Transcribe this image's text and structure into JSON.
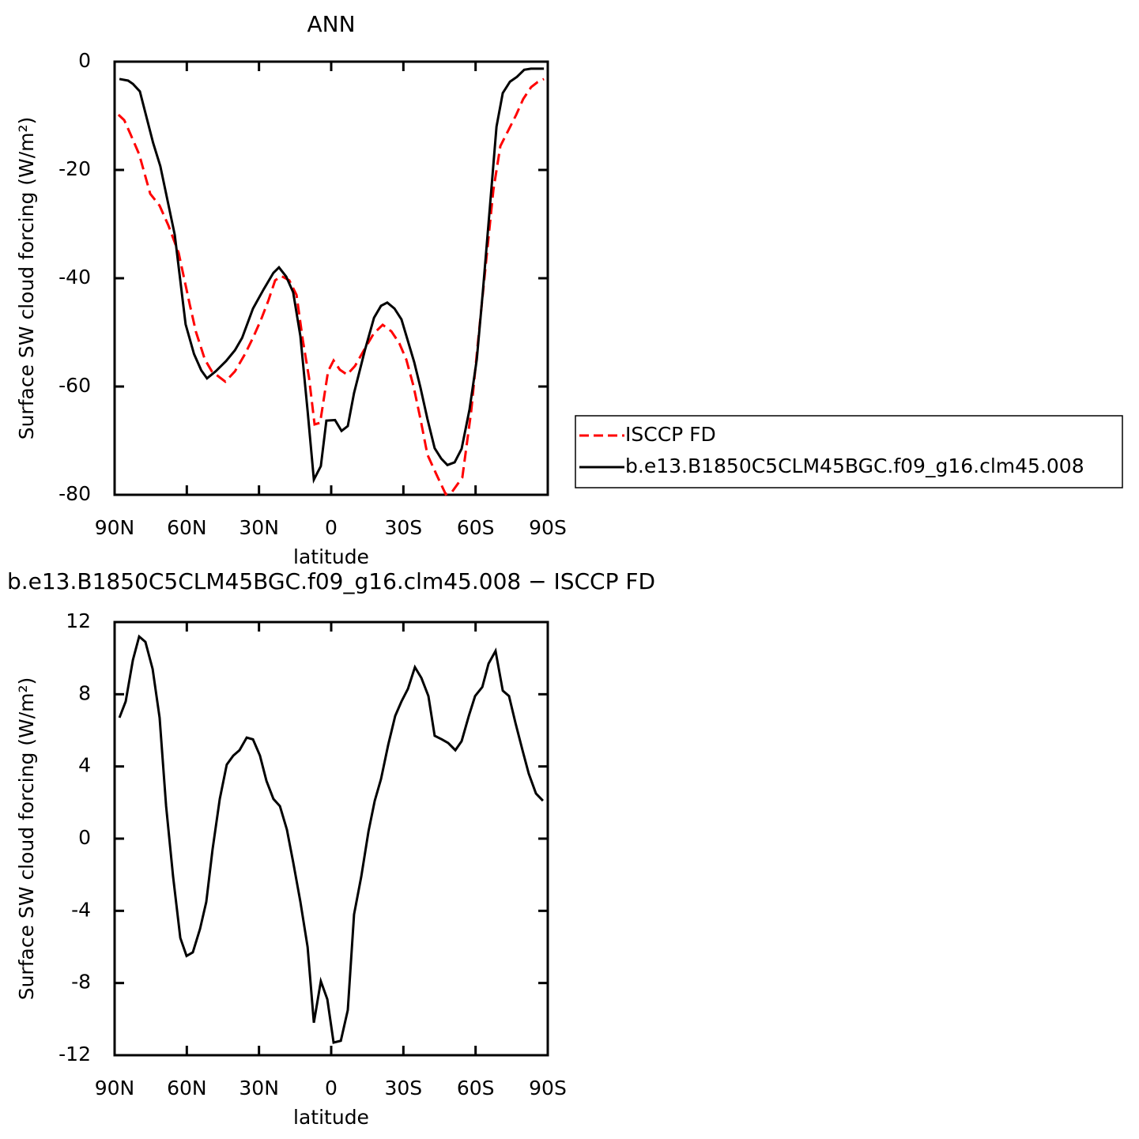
{
  "chart_data": [
    {
      "type": "line",
      "title": "ANN",
      "xlabel": "latitude",
      "ylabel": "Surface SW cloud forcing (W/m²)",
      "xlim": [
        90,
        -90
      ],
      "xticks": [
        {
          "value": 90,
          "label": "90N"
        },
        {
          "value": 60,
          "label": "60N"
        },
        {
          "value": 30,
          "label": "30N"
        },
        0,
        {
          "value": -30,
          "label": "30S"
        },
        {
          "value": -60,
          "label": "60S"
        },
        {
          "value": -90,
          "label": "90S"
        }
      ],
      "ylim": [
        -80,
        0
      ],
      "yticks": [
        -80,
        -60,
        -40,
        -20,
        0
      ],
      "legend": "right",
      "series": [
        {
          "name": "ISCCP FD",
          "color": "#ff0000",
          "dash": "dashed",
          "x": [
            88.4,
            86,
            83.4,
            79.8,
            75.2,
            71.3,
            67.7,
            63.4,
            58.8,
            56.2,
            52.5,
            49.6,
            44,
            40,
            35.8,
            32.5,
            29.2,
            26,
            23.3,
            20.7,
            17.4,
            14.4,
            11.8,
            9.2,
            6.9,
            4.6,
            1.3,
            -1,
            -3.6,
            -6.6,
            -9.9,
            -14.5,
            -17.7,
            -21.4,
            -25,
            -28.3,
            -31.2,
            -34.2,
            -37.1,
            -40,
            -43.7,
            -47.6,
            -50.3,
            -54.5,
            -58.2,
            -61.4,
            -64.4,
            -67.4,
            -70.3,
            -73.6,
            -76.9,
            -79.8,
            -83.1,
            -85.7,
            -88.4
          ],
          "values": [
            -9.8,
            -10.8,
            -13.4,
            -17.1,
            -24.4,
            -26.6,
            -30.2,
            -35.3,
            -44.8,
            -49.9,
            -55,
            -57.2,
            -59.1,
            -57.2,
            -54,
            -51,
            -47.7,
            -44,
            -40.4,
            -39.6,
            -40.4,
            -43.1,
            -51.4,
            -58.4,
            -67,
            -66.7,
            -57.2,
            -55.2,
            -56.9,
            -57.8,
            -56.2,
            -52.6,
            -50.2,
            -48.6,
            -49.8,
            -52,
            -55,
            -59.9,
            -66,
            -72.6,
            -76.2,
            -79.9,
            -79.4,
            -76.8,
            -64.5,
            -50,
            -36.8,
            -23.7,
            -15.6,
            -12.7,
            -9.8,
            -6.9,
            -4.7,
            -3.8,
            -3.2
          ]
        },
        {
          "name": "b.e13.B1850C5CLM45BGC.f09_g16.clm45.008",
          "color": "#000000",
          "dash": "solid",
          "x": [
            88,
            84.4,
            82.4,
            79.5,
            74,
            71,
            65,
            60.5,
            57,
            54,
            51.6,
            48,
            43.7,
            40,
            37,
            32.5,
            28,
            24,
            21.7,
            18.7,
            15.8,
            12.8,
            9.8,
            7.2,
            4.3,
            2,
            -1.6,
            -4.3,
            -6.9,
            -9.5,
            -14,
            -17.8,
            -20.7,
            -23.3,
            -26.3,
            -29.2,
            -34.5,
            -37.1,
            -40,
            -43,
            -45.7,
            -48.3,
            -51.3,
            -54.2,
            -57.5,
            -60.5,
            -63,
            -66,
            -68.7,
            -71.3,
            -74.3,
            -77.2,
            -80.2,
            -83,
            -88.4
          ],
          "values": [
            -3.2,
            -3.5,
            -4.1,
            -5.5,
            -15,
            -19.3,
            -32,
            -48.5,
            -54,
            -57,
            -58.5,
            -57.2,
            -55.3,
            -53.3,
            -51,
            -45.6,
            -42,
            -39,
            -38,
            -39.7,
            -42.6,
            -50.7,
            -64.5,
            -77.2,
            -74.7,
            -66.3,
            -66.2,
            -68.2,
            -67.3,
            -61.2,
            -53.3,
            -47.3,
            -45.1,
            -44.5,
            -45.6,
            -47.6,
            -55.5,
            -60.2,
            -66,
            -71.4,
            -73.3,
            -74.5,
            -74,
            -71.5,
            -64.2,
            -55,
            -42.6,
            -26.6,
            -12,
            -5.8,
            -3.7,
            -2.8,
            -1.5,
            -1.3,
            -1.3
          ]
        }
      ]
    },
    {
      "type": "line",
      "title": "b.e13.B1850C5CLM45BGC.f09_g16.clm45.008 − ISCCP FD",
      "xlabel": "latitude",
      "ylabel": "Surface SW cloud forcing (W/m²)",
      "xlim": [
        90,
        -90
      ],
      "xticks": [
        {
          "value": 90,
          "label": "90N"
        },
        {
          "value": 60,
          "label": "60N"
        },
        {
          "value": 30,
          "label": "30N"
        },
        0,
        {
          "value": -30,
          "label": "30S"
        },
        {
          "value": -60,
          "label": "60S"
        },
        {
          "value": -90,
          "label": "90S"
        }
      ],
      "ylim": [
        -12,
        12
      ],
      "yticks": [
        -12,
        -8,
        -4,
        0,
        4,
        8,
        12
      ],
      "series": [
        {
          "color": "#000000",
          "dash": "solid",
          "x": [
            88,
            85.4,
            82.4,
            79.8,
            77.2,
            74.2,
            71.3,
            68.6,
            65.7,
            62.7,
            60.1,
            57.5,
            54.5,
            51.9,
            49.3,
            46.3,
            43.4,
            40.7,
            38.1,
            35.1,
            32.5,
            29.6,
            26.9,
            24,
            21.3,
            18.4,
            15.8,
            12.8,
            9.8,
            7.2,
            4.3,
            1.6,
            -1,
            -4,
            -6.9,
            -9.5,
            -12.5,
            -15.5,
            -18.1,
            -20.7,
            -23.7,
            -26.6,
            -29.2,
            -31.9,
            -34.8,
            -37.5,
            -40.4,
            -43,
            -46,
            -48.6,
            -51.6,
            -54.2,
            -57.2,
            -59.8,
            -62.8,
            -65.4,
            -68.3,
            -71.3,
            -73.9,
            -76.6,
            -79.5,
            -82.1,
            -85.1,
            -88
          ],
          "values": [
            6.7,
            7.6,
            9.9,
            11.2,
            10.9,
            9.4,
            6.7,
            1.8,
            -2.1,
            -5.5,
            -6.5,
            -6.3,
            -5,
            -3.5,
            -0.6,
            2.2,
            4.1,
            4.6,
            4.9,
            5.6,
            5.5,
            4.6,
            3.2,
            2.2,
            1.8,
            0.5,
            -1.3,
            -3.5,
            -6,
            -10.2,
            -7.9,
            -8.9,
            -11.3,
            -11.2,
            -9.5,
            -4.2,
            -2.1,
            0.4,
            2.1,
            3.3,
            5.2,
            6.8,
            7.6,
            8.3,
            9.5,
            8.9,
            7.9,
            5.7,
            5.5,
            5.3,
            4.9,
            5.4,
            6.8,
            7.9,
            8.4,
            9.7,
            10.4,
            8.2,
            7.9,
            6.4,
            4.9,
            3.6,
            2.5,
            2.1
          ]
        }
      ]
    }
  ]
}
